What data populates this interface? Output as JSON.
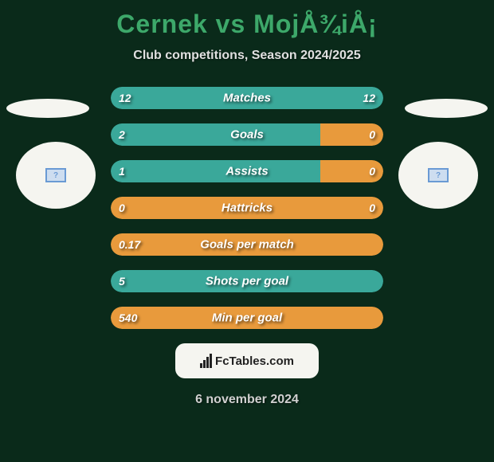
{
  "title": "Cernek vs MojÅ¾iÅ¡",
  "subtitle": "Club competitions, Season 2024/2025",
  "date": "6 november 2024",
  "colors": {
    "background": "#0a2a1a",
    "accent": "#3da86a",
    "orange": "#e89a3c",
    "teal": "#3aa89a",
    "white": "#f5f5f0"
  },
  "stats": [
    {
      "label": "Matches",
      "left_value": "12",
      "right_value": "12",
      "left_pct": 50,
      "right_pct": 50,
      "left_color": "#3aa89a",
      "right_color": "#3aa89a"
    },
    {
      "label": "Goals",
      "left_value": "2",
      "right_value": "0",
      "left_pct": 77,
      "right_pct": 23,
      "left_color": "#3aa89a",
      "right_color": "#e89a3c"
    },
    {
      "label": "Assists",
      "left_value": "1",
      "right_value": "0",
      "left_pct": 77,
      "right_pct": 23,
      "left_color": "#3aa89a",
      "right_color": "#e89a3c"
    },
    {
      "label": "Hattricks",
      "left_value": "0",
      "right_value": "0",
      "left_pct": 50,
      "right_pct": 50,
      "left_color": "#e89a3c",
      "right_color": "#e89a3c"
    },
    {
      "label": "Goals per match",
      "left_value": "0.17",
      "right_value": "",
      "left_pct": 100,
      "right_pct": 0,
      "left_color": "#e89a3c",
      "right_color": "#e89a3c"
    },
    {
      "label": "Shots per goal",
      "left_value": "5",
      "right_value": "",
      "left_pct": 100,
      "right_pct": 0,
      "left_color": "#3aa89a",
      "right_color": "#3aa89a"
    },
    {
      "label": "Min per goal",
      "left_value": "540",
      "right_value": "",
      "left_pct": 100,
      "right_pct": 0,
      "left_color": "#e89a3c",
      "right_color": "#e89a3c"
    }
  ],
  "footer_brand": "FcTables.com",
  "badge_glyph": "?"
}
